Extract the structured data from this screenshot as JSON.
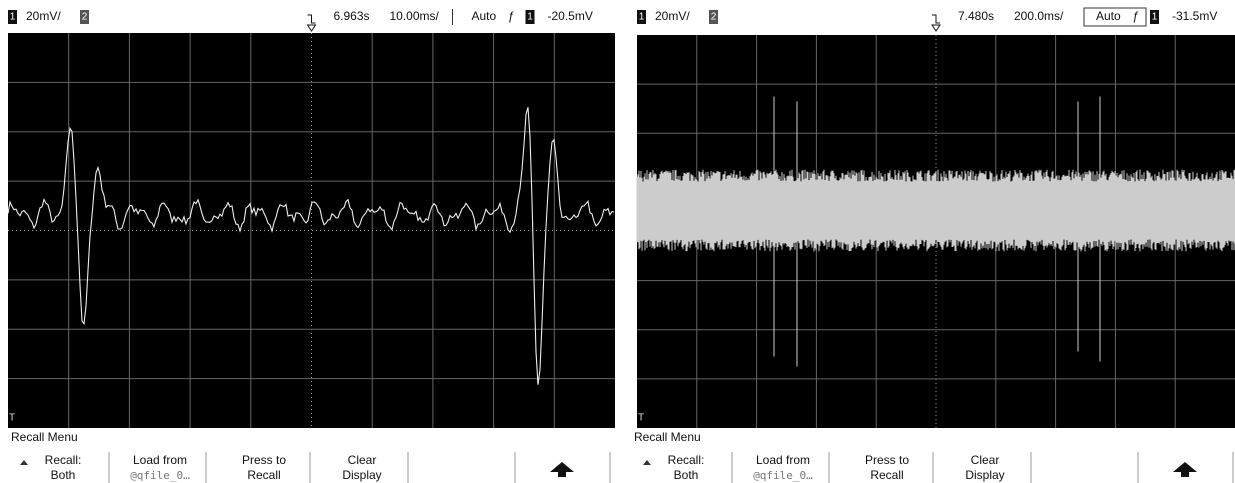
{
  "panels": [
    {
      "header": {
        "channel_1": "1",
        "scale": "20mV/",
        "channel_2": "2",
        "delay": "6.963s",
        "timebase": "10.00ms/",
        "mode": "Auto",
        "trigger_channel": "1",
        "trigger_level": "-20.5mV"
      },
      "menu_title": "Recall Menu",
      "softkeys": [
        {
          "line1": "Recall:",
          "line2": "Both"
        },
        {
          "line1": "Load from",
          "line2": "@qfile_0…"
        },
        {
          "line1": "Press to",
          "line2": "Recall"
        },
        {
          "line1": "Clear",
          "line2": "Display"
        }
      ]
    },
    {
      "header": {
        "channel_1": "1",
        "scale": "20mV/",
        "channel_2": "2",
        "delay": "7.480s",
        "timebase": "200.0ms/",
        "mode": "Auto",
        "trigger_channel": "1",
        "trigger_level": "-31.5mV"
      },
      "menu_title": "Recall Menu",
      "softkeys": [
        {
          "line1": "Recall:",
          "line2": "Both"
        },
        {
          "line1": "Load from",
          "line2": "@qfile_0…"
        },
        {
          "line1": "Press to",
          "line2": "Recall"
        },
        {
          "line1": "Clear",
          "line2": "Display"
        }
      ]
    }
  ]
}
